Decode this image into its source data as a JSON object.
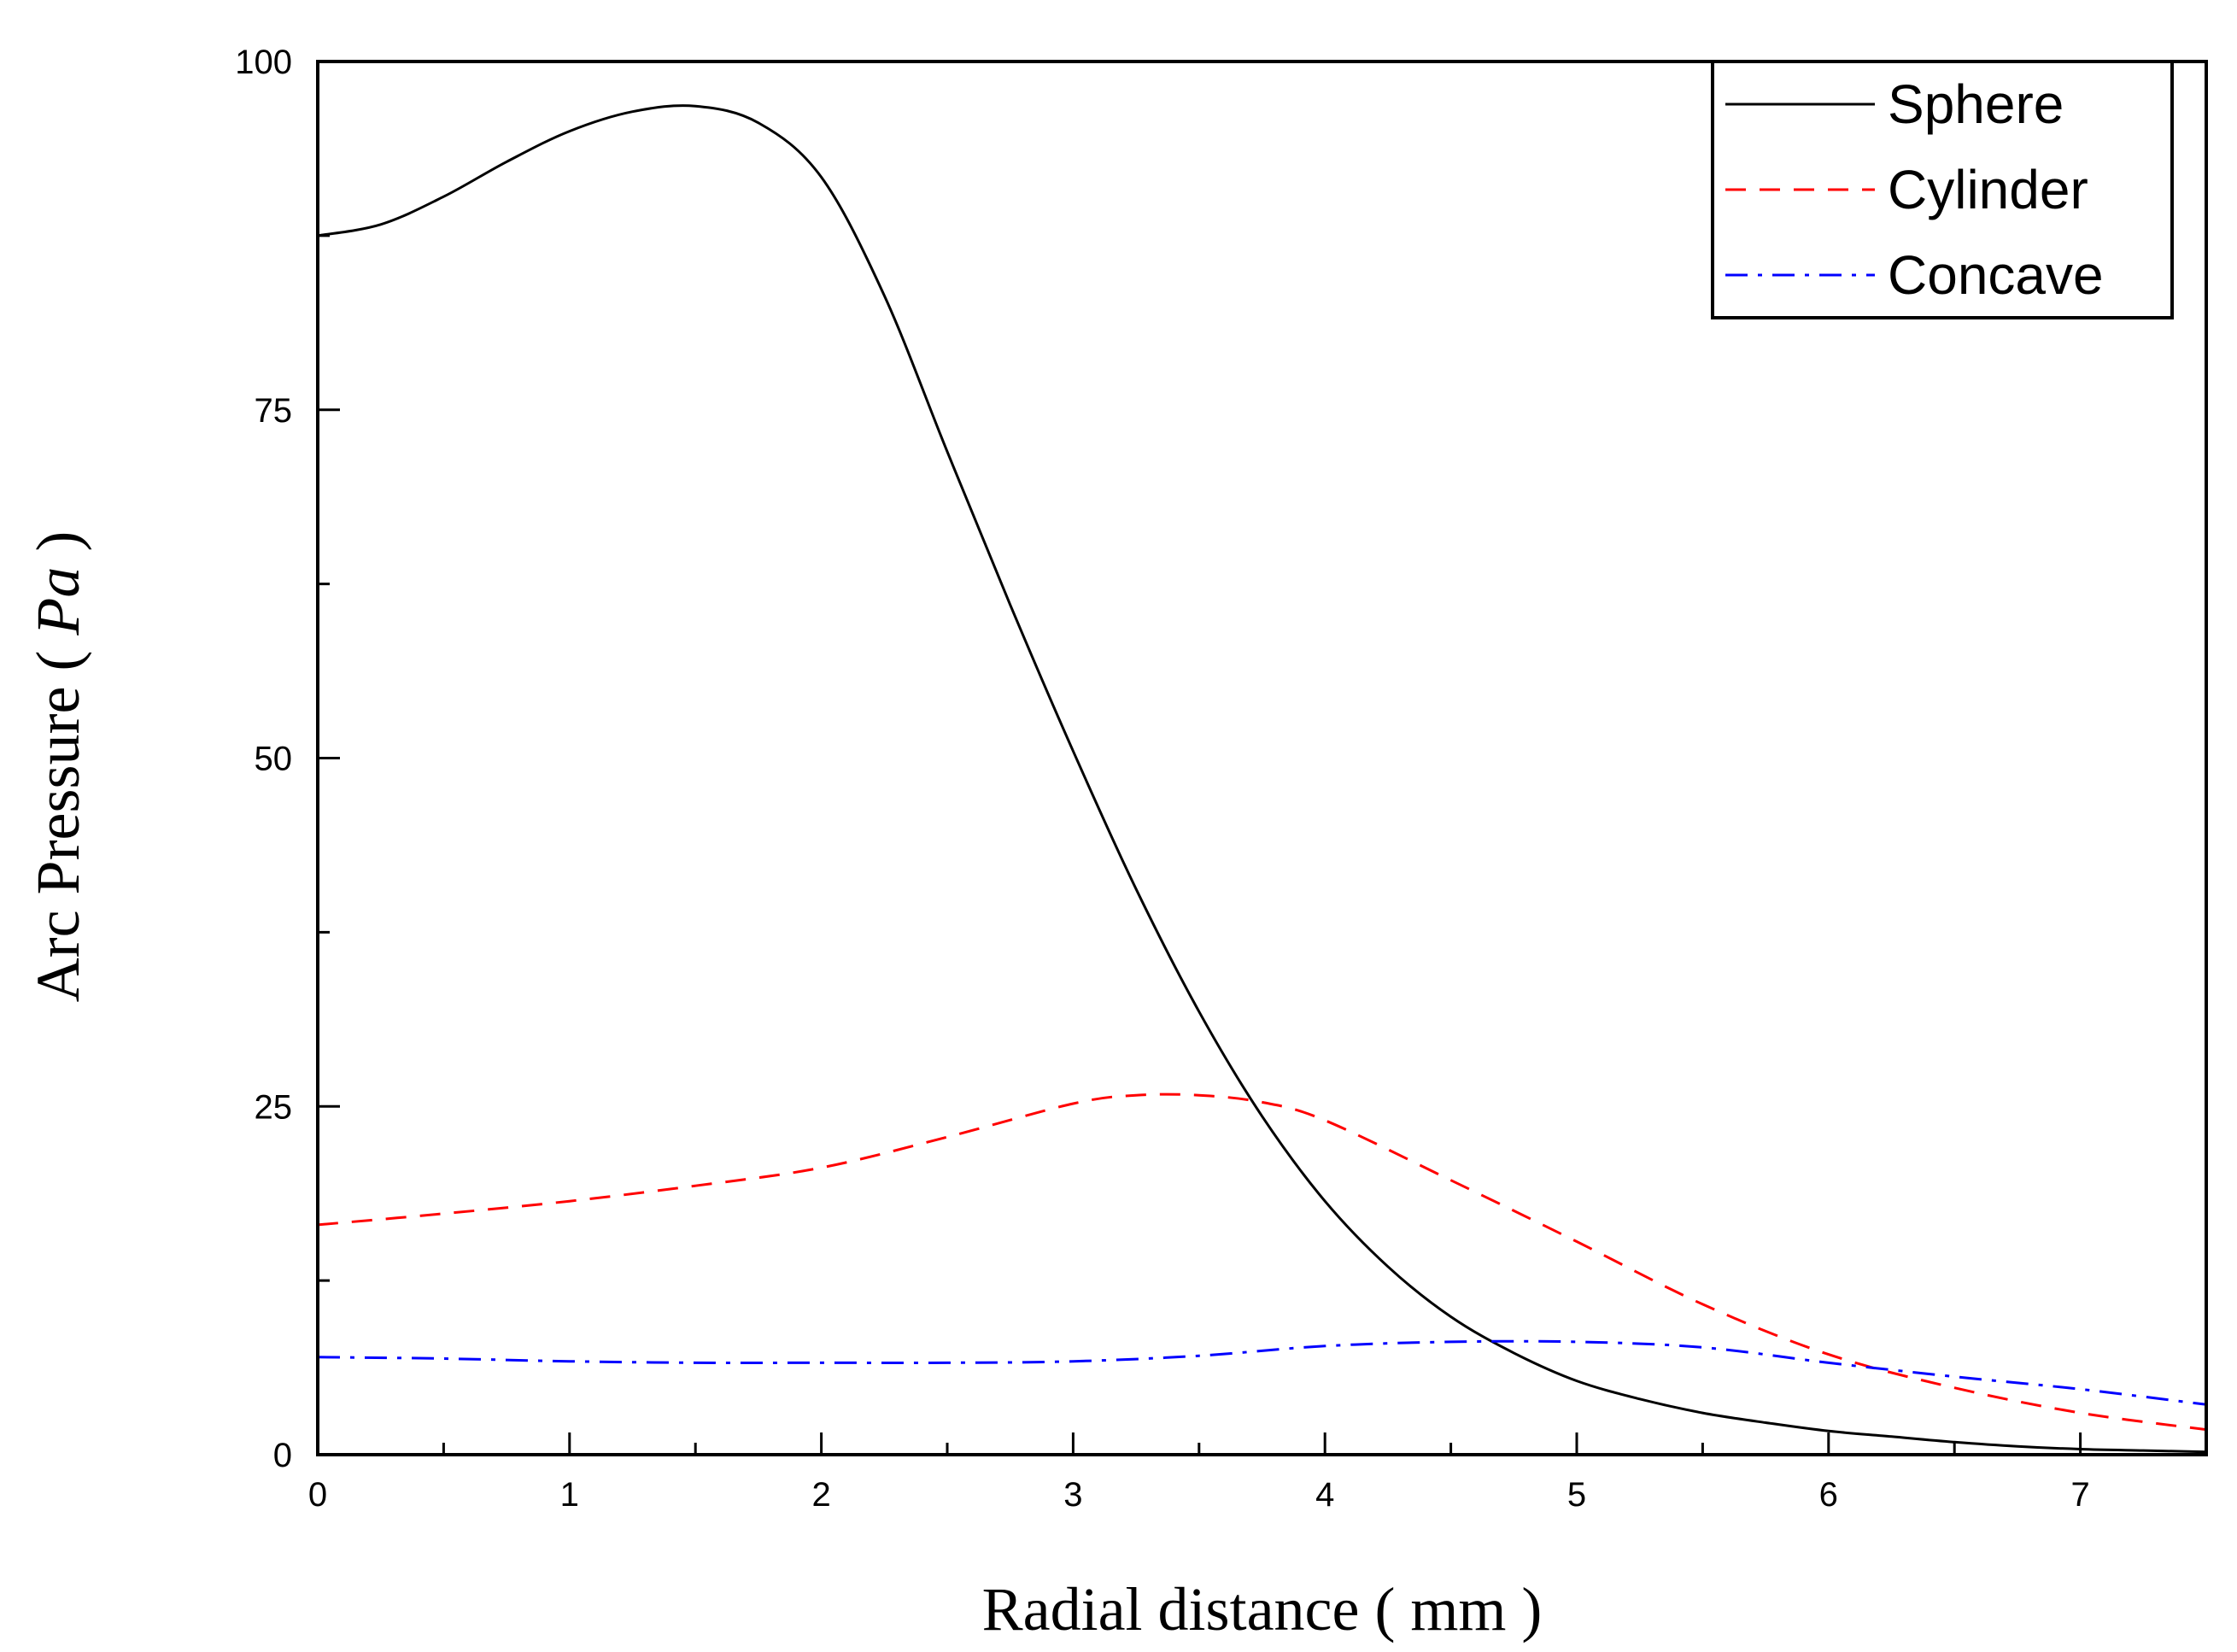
{
  "chart_data": {
    "type": "line",
    "title": "",
    "xlabel": "Radial distance ( mm )",
    "ylabel_prefix": "Arc Pressure ( ",
    "ylabel_unit": "Pa",
    "ylabel_suffix": " )",
    "xlim": [
      0,
      7.5
    ],
    "ylim": [
      0,
      100
    ],
    "x_ticks": [
      0,
      1,
      2,
      3,
      4,
      5,
      6,
      7
    ],
    "x_tick_labels": [
      "0",
      "1",
      "2",
      "3",
      "4",
      "5",
      "6",
      "7"
    ],
    "y_ticks": [
      0,
      25,
      50,
      75,
      100
    ],
    "y_tick_labels": [
      "0",
      "25",
      "50",
      "75",
      "100"
    ],
    "grid": false,
    "legend_position": "top-right",
    "series": [
      {
        "name": "Sphere",
        "color": "#000000",
        "dash": "solid",
        "x": [
          0,
          0.25,
          0.5,
          0.75,
          1.0,
          1.25,
          1.5,
          1.75,
          2.0,
          2.25,
          2.5,
          2.75,
          3.0,
          3.25,
          3.5,
          3.75,
          4.0,
          4.25,
          4.5,
          4.75,
          5.0,
          5.25,
          5.5,
          5.75,
          6.0,
          6.25,
          6.5,
          6.75,
          7.0,
          7.25,
          7.5
        ],
        "y": [
          87.5,
          88.3,
          90.3,
          92.8,
          95.0,
          96.4,
          96.8,
          95.6,
          91.7,
          83.2,
          72.0,
          61.0,
          50.5,
          40.6,
          31.8,
          24.3,
          18.2,
          13.5,
          9.9,
          7.3,
          5.3,
          4.0,
          3.0,
          2.3,
          1.7,
          1.3,
          0.9,
          0.6,
          0.4,
          0.3,
          0.2
        ]
      },
      {
        "name": "Cylinder",
        "color": "#ff0000",
        "dash": "dashed",
        "x": [
          0,
          0.5,
          1.0,
          1.5,
          2.0,
          2.5,
          3.0,
          3.25,
          3.5,
          3.75,
          4.0,
          4.5,
          5.0,
          5.5,
          6.0,
          6.5,
          7.0,
          7.5
        ],
        "y": [
          16.5,
          17.3,
          18.2,
          19.3,
          20.6,
          22.8,
          25.2,
          25.8,
          25.8,
          25.3,
          24.0,
          19.7,
          15.3,
          10.8,
          7.2,
          4.8,
          3.0,
          1.8
        ]
      },
      {
        "name": "Concave",
        "color": "#0000ff",
        "dash": "dash-dot",
        "x": [
          0,
          0.5,
          1.0,
          1.5,
          2.0,
          2.5,
          3.0,
          3.5,
          4.0,
          4.5,
          5.0,
          5.5,
          6.0,
          6.5,
          7.0,
          7.5
        ],
        "y": [
          7.0,
          6.9,
          6.7,
          6.6,
          6.6,
          6.6,
          6.7,
          7.1,
          7.8,
          8.1,
          8.1,
          7.7,
          6.6,
          5.6,
          4.7,
          3.6
        ]
      }
    ]
  }
}
